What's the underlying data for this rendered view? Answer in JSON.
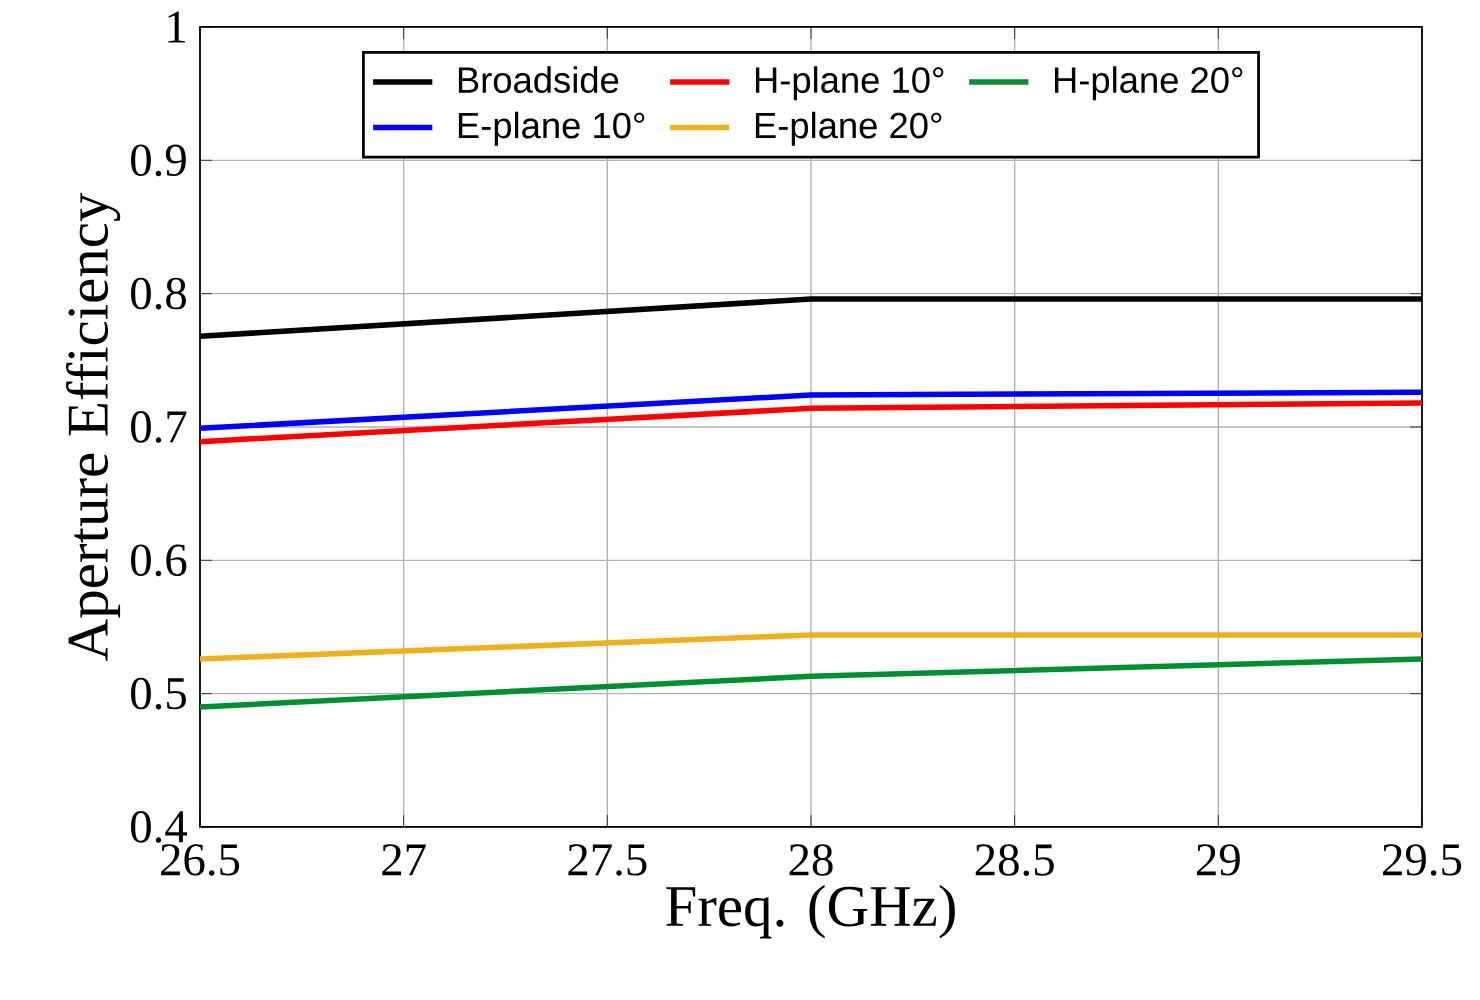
{
  "chart_data": {
    "type": "line",
    "xlabel": "Freq. (GHz)",
    "ylabel": "Aperture Efficiency",
    "x": [
      26.5,
      28,
      29.5
    ],
    "series": [
      {
        "name": "Broadside",
        "color": "#000000",
        "values": [
          0.768,
          0.796,
          0.796
        ]
      },
      {
        "name": "E-plane 10°",
        "color": "#0000ff",
        "values": [
          0.699,
          0.724,
          0.726
        ]
      },
      {
        "name": "H-plane 10°",
        "color": "#ff0000",
        "values": [
          0.689,
          0.714,
          0.718
        ]
      },
      {
        "name": "E-plane 20°",
        "color": "#edb120",
        "values": [
          0.526,
          0.544,
          0.544
        ]
      },
      {
        "name": "H-plane 20°",
        "color": "#008f2f",
        "values": [
          0.49,
          0.513,
          0.526
        ]
      }
    ],
    "xlim": [
      26.5,
      29.5
    ],
    "xticks": [
      26.5,
      27,
      27.5,
      28,
      28.5,
      29,
      29.5
    ],
    "ylim": [
      0.4,
      1
    ],
    "yticks": [
      0.4,
      0.5,
      0.6,
      0.7,
      0.8,
      0.9,
      1
    ],
    "grid": true,
    "legend": "top",
    "line_style": "solid",
    "marker": "none"
  }
}
